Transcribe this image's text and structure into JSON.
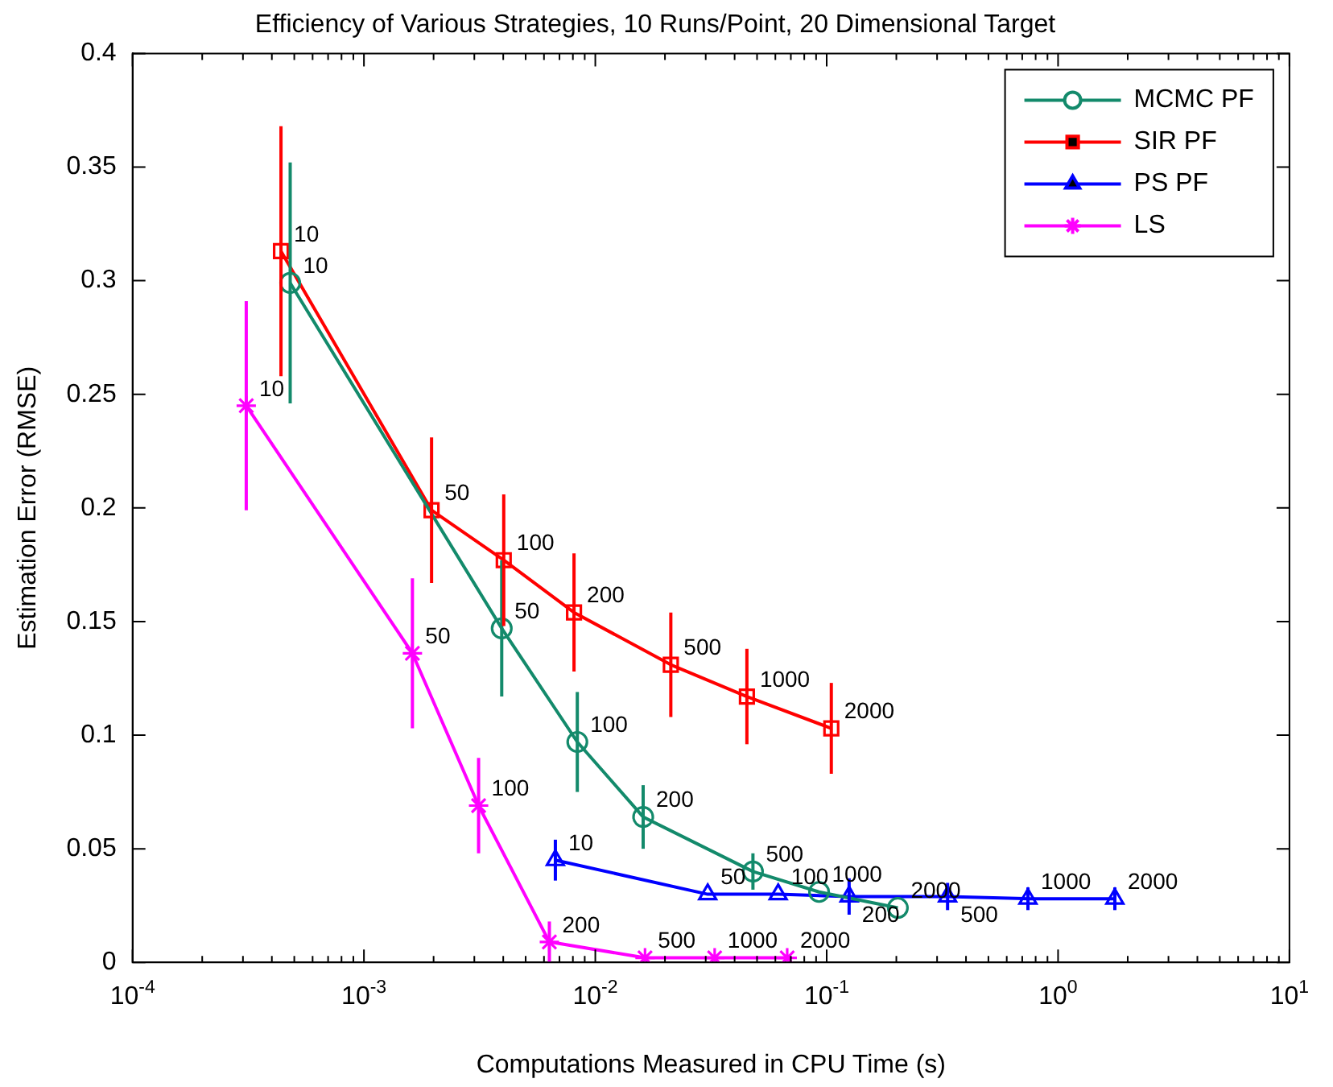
{
  "chart_data": {
    "type": "line",
    "title": "Efficiency of Various Strategies, 10 Runs/Point, 20 Dimensional Target",
    "xlabel": "Computations Measured in CPU Time (s)",
    "ylabel": "Estimation Error (RMSE)",
    "log": "x",
    "xlim": [
      0.0001,
      10
    ],
    "xticks": [
      {
        "value": 0.0001,
        "label": "10$^{-4}$"
      },
      {
        "value": 0.0002,
        "label": null
      },
      {
        "value": 0.0003,
        "label": null
      },
      {
        "value": 0.0004,
        "label": null
      },
      {
        "value": 0.0005,
        "label": null
      },
      {
        "value": 0.0006,
        "label": null
      },
      {
        "value": 0.0007,
        "label": null
      },
      {
        "value": 0.0008,
        "label": null
      },
      {
        "value": 0.0009,
        "label": null
      },
      {
        "value": 0.001,
        "label": "10$^{-3}$"
      },
      {
        "value": 0.002,
        "label": null
      },
      {
        "value": 0.003,
        "label": null
      },
      {
        "value": 0.004,
        "label": null
      },
      {
        "value": 0.005,
        "label": null
      },
      {
        "value": 0.006,
        "label": null
      },
      {
        "value": 0.007,
        "label": null
      },
      {
        "value": 0.008,
        "label": null
      },
      {
        "value": 0.009,
        "label": null
      },
      {
        "value": 0.01,
        "label": "10$^{-2}$"
      },
      {
        "value": 0.02,
        "label": null
      },
      {
        "value": 0.03,
        "label": null
      },
      {
        "value": 0.04,
        "label": null
      },
      {
        "value": 0.05,
        "label": null
      },
      {
        "value": 0.06,
        "label": null
      },
      {
        "value": 0.07,
        "label": null
      },
      {
        "value": 0.08,
        "label": null
      },
      {
        "value": 0.09,
        "label": null
      },
      {
        "value": 0.1,
        "label": "10$^{-1}$"
      },
      {
        "value": 0.2,
        "label": null
      },
      {
        "value": 0.3,
        "label": null
      },
      {
        "value": 0.4,
        "label": null
      },
      {
        "value": 0.5,
        "label": null
      },
      {
        "value": 0.6,
        "label": null
      },
      {
        "value": 0.7,
        "label": null
      },
      {
        "value": 0.8,
        "label": null
      },
      {
        "value": 0.9,
        "label": null
      },
      {
        "value": 1,
        "label": "10$^{0}$"
      },
      {
        "value": 2,
        "label": null
      },
      {
        "value": 3,
        "label": null
      },
      {
        "value": 4,
        "label": null
      },
      {
        "value": 5,
        "label": null
      },
      {
        "value": 6,
        "label": null
      },
      {
        "value": 7,
        "label": null
      },
      {
        "value": 8,
        "label": null
      },
      {
        "value": 9,
        "label": null
      },
      {
        "value": 10,
        "label": "10$^{1}$"
      }
    ],
    "ylim": [
      0,
      0.4
    ],
    "yticks": [
      0,
      0.05,
      0.1,
      0.15,
      0.2,
      0.25,
      0.3,
      0.35,
      0.4
    ],
    "grid": false,
    "legend": "top right",
    "line_style": "solid",
    "series": [
      {
        "name": "MCMC PF",
        "color": "#138a6b",
        "marker": "circle",
        "x": [
          0.00048,
          0.00394,
          0.00836,
          0.0161,
          0.048,
          0.0927,
          0.203
        ],
        "values": [
          0.299,
          0.147,
          0.097,
          0.064,
          0.04,
          0.031,
          0.024
        ],
        "errors": [
          0.053,
          0.03,
          0.022,
          0.014,
          0.008,
          null,
          null
        ]
      },
      {
        "name": "SIR PF",
        "color": "#ff0000",
        "marker": "square",
        "x": [
          0.000438,
          0.00196,
          0.00402,
          0.00809,
          0.0212,
          0.0452,
          0.1047
        ],
        "values": [
          0.313,
          0.199,
          0.177,
          0.154,
          0.131,
          0.117,
          0.103
        ],
        "errors": [
          0.055,
          0.032,
          0.029,
          0.026,
          0.023,
          0.021,
          0.02
        ]
      },
      {
        "name": "PS PF",
        "color": "#0000ff",
        "marker": "triangle",
        "x": [
          0.00672,
          0.0306,
          0.0617,
          0.125,
          0.333,
          0.741,
          1.76
        ],
        "values": [
          0.045,
          0.03,
          0.03,
          0.029,
          0.029,
          0.028,
          0.028
        ],
        "errors": [
          0.009,
          null,
          null,
          0.008,
          0.006,
          0.005,
          0.005
        ]
      },
      {
        "name": "LS",
        "color": "#ff00ff",
        "marker": "cross",
        "x": [
          0.00031,
          0.00162,
          0.00313,
          0.00633,
          0.0164,
          0.0328,
          0.0675
        ],
        "values": [
          0.245,
          0.136,
          0.069,
          0.009,
          0.002,
          0.002,
          0.002
        ],
        "errors": [
          0.046,
          0.033,
          0.021,
          0.009,
          null,
          null,
          null
        ]
      }
    ],
    "annotations": [
      {
        "text": "10",
        "x": 0.00048,
        "y": 0.299
      },
      {
        "text": "50",
        "x": 0.00394,
        "y": 0.147
      },
      {
        "text": "100",
        "x": 0.00836,
        "y": 0.097
      },
      {
        "text": "200",
        "x": 0.0161,
        "y": 0.064
      },
      {
        "text": "500",
        "x": 0.048,
        "y": 0.04
      },
      {
        "text": "1000",
        "x": 0.0927,
        "y": 0.031
      },
      {
        "text": "2000",
        "x": 0.203,
        "y": 0.024
      },
      {
        "text": "10",
        "x": 0.000438,
        "y": 0.313
      },
      {
        "text": "50",
        "x": 0.00196,
        "y": 0.199
      },
      {
        "text": "100",
        "x": 0.00402,
        "y": 0.177
      },
      {
        "text": "200",
        "x": 0.00809,
        "y": 0.154
      },
      {
        "text": "500",
        "x": 0.0212,
        "y": 0.131
      },
      {
        "text": "1000",
        "x": 0.0452,
        "y": 0.117
      },
      {
        "text": "2000",
        "x": 0.1047,
        "y": 0.103
      },
      {
        "text": "10",
        "x": 0.00672,
        "y": 0.045
      },
      {
        "text": "50",
        "x": 0.0306,
        "y": 0.03
      },
      {
        "text": "100",
        "x": 0.0617,
        "y": 0.03
      },
      {
        "text": "200",
        "x": 0.125,
        "y": 0.029
      },
      {
        "text": "500",
        "x": 0.333,
        "y": 0.029
      },
      {
        "text": "1000",
        "x": 0.741,
        "y": 0.028
      },
      {
        "text": "2000",
        "x": 1.76,
        "y": 0.028
      },
      {
        "text": "10",
        "x": 0.00031,
        "y": 0.245
      },
      {
        "text": "50",
        "x": 0.00162,
        "y": 0.136
      },
      {
        "text": "100",
        "x": 0.00313,
        "y": 0.069
      },
      {
        "text": "200",
        "x": 0.00633,
        "y": 0.009
      },
      {
        "text": "500",
        "x": 0.0164,
        "y": 0.002
      },
      {
        "text": "1000",
        "x": 0.0328,
        "y": 0.002
      },
      {
        "text": "2000",
        "x": 0.0675,
        "y": 0.002
      }
    ]
  }
}
